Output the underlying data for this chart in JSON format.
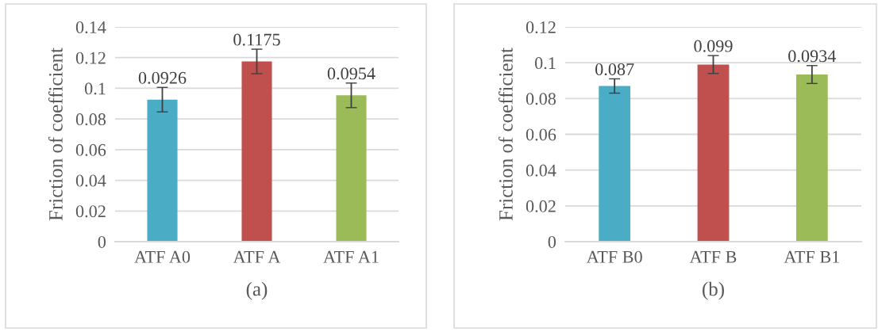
{
  "chart_data": [
    {
      "type": "bar",
      "categories": [
        "ATF A0",
        "ATF A",
        "ATF A1"
      ],
      "values": [
        0.0926,
        0.1175,
        0.0954
      ],
      "colors": [
        "#4bacc6",
        "#c0504d",
        "#9bbb59"
      ],
      "errors": [
        0.008,
        0.008,
        0.008
      ],
      "data_labels": true,
      "ylabel": "Friction of coefficient",
      "xlabel": "(a)",
      "ylim": [
        0,
        0.14
      ],
      "yticks": [
        0,
        0.02,
        0.04,
        0.06,
        0.08,
        0.1,
        0.12,
        0.14
      ],
      "grid": "y",
      "legend": false
    },
    {
      "type": "bar",
      "categories": [
        "ATF B0",
        "ATF B",
        "ATF B1"
      ],
      "values": [
        0.087,
        0.099,
        0.0934
      ],
      "colors": [
        "#4bacc6",
        "#c0504d",
        "#9bbb59"
      ],
      "errors": [
        0.004,
        0.005,
        0.005
      ],
      "data_labels": true,
      "ylabel": "Friction of coefficient",
      "xlabel": "(b)",
      "ylim": [
        0,
        0.12
      ],
      "yticks": [
        0,
        0.02,
        0.04,
        0.06,
        0.08,
        0.1,
        0.12
      ],
      "grid": "y",
      "legend": false
    }
  ]
}
